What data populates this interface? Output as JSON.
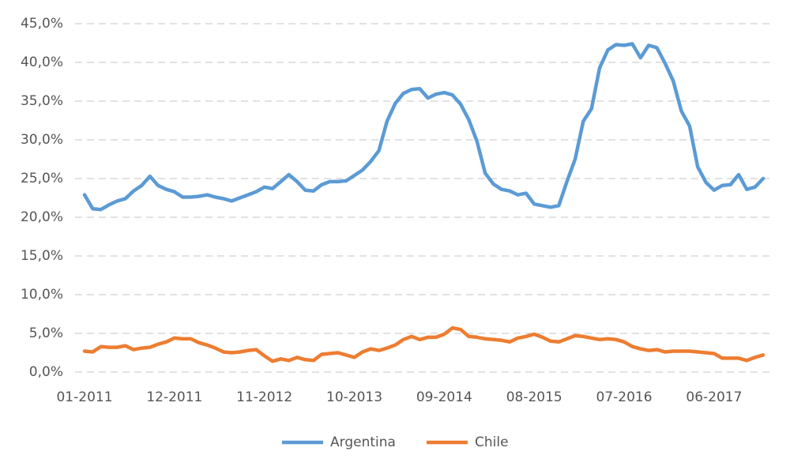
{
  "chart_data": {
    "type": "line",
    "categories": [
      "01-2011",
      null,
      null,
      null,
      null,
      null,
      null,
      null,
      null,
      null,
      null,
      "12-2011",
      null,
      null,
      null,
      null,
      null,
      null,
      null,
      null,
      null,
      null,
      "11-2012",
      null,
      null,
      null,
      null,
      null,
      null,
      null,
      null,
      null,
      null,
      "10-2013",
      null,
      null,
      null,
      null,
      null,
      null,
      null,
      null,
      null,
      null,
      "09-2014",
      null,
      null,
      null,
      null,
      null,
      null,
      null,
      null,
      null,
      null,
      "08-2015",
      null,
      null,
      null,
      null,
      null,
      null,
      null,
      null,
      null,
      null,
      "07-2016",
      null,
      null,
      null,
      null,
      null,
      null,
      null,
      null,
      null,
      null,
      "06-2017",
      null,
      null,
      null,
      null,
      null,
      null
    ],
    "series": [
      {
        "name": "Argentina",
        "color": "#5b9bd5",
        "values": [
          22.9,
          21.1,
          21.0,
          21.6,
          22.1,
          22.4,
          23.4,
          24.1,
          25.3,
          24.1,
          23.6,
          23.3,
          22.6,
          22.6,
          22.7,
          22.9,
          22.6,
          22.4,
          22.1,
          22.5,
          22.9,
          23.3,
          23.9,
          23.7,
          24.6,
          25.5,
          24.6,
          23.5,
          23.4,
          24.2,
          24.6,
          24.6,
          24.7,
          25.4,
          26.1,
          27.2,
          28.6,
          32.4,
          34.7,
          36.0,
          36.5,
          36.6,
          35.4,
          35.9,
          36.1,
          35.8,
          34.6,
          32.6,
          29.8,
          25.7,
          24.3,
          23.6,
          23.4,
          22.9,
          23.1,
          21.7,
          21.5,
          21.3,
          21.5,
          24.6,
          27.5,
          32.4,
          34.0,
          39.3,
          41.6,
          42.3,
          42.2,
          42.4,
          40.6,
          42.2,
          41.9,
          39.9,
          37.6,
          33.7,
          31.8,
          26.5,
          24.5,
          23.5,
          24.1,
          24.2,
          25.5,
          23.6,
          23.9,
          25.0
        ]
      },
      {
        "name": "Chile",
        "color": "#ed7d31",
        "values": [
          2.7,
          2.6,
          3.3,
          3.2,
          3.2,
          3.4,
          2.9,
          3.1,
          3.2,
          3.6,
          3.9,
          4.4,
          4.3,
          4.3,
          3.8,
          3.5,
          3.1,
          2.6,
          2.5,
          2.6,
          2.8,
          2.9,
          2.1,
          1.4,
          1.7,
          1.5,
          1.9,
          1.6,
          1.5,
          2.3,
          2.4,
          2.5,
          2.2,
          1.9,
          2.6,
          3.0,
          2.8,
          3.1,
          3.5,
          4.2,
          4.6,
          4.2,
          4.5,
          4.5,
          4.9,
          5.7,
          5.5,
          4.6,
          4.5,
          4.3,
          4.2,
          4.1,
          3.9,
          4.4,
          4.6,
          4.9,
          4.5,
          4.0,
          3.9,
          4.3,
          4.7,
          4.6,
          4.4,
          4.2,
          4.3,
          4.2,
          3.9,
          3.3,
          3.0,
          2.8,
          2.9,
          2.6,
          2.7,
          2.7,
          2.7,
          2.6,
          2.5,
          2.4,
          1.8,
          1.8,
          1.8,
          1.5,
          1.9,
          2.2
        ]
      }
    ],
    "ylim": [
      0,
      45
    ],
    "yticks": [
      {
        "value": 0,
        "label": "0,0%"
      },
      {
        "value": 5,
        "label": "5,0%"
      },
      {
        "value": 10,
        "label": "10,0%"
      },
      {
        "value": 15,
        "label": "15,0%"
      },
      {
        "value": 20,
        "label": "20,0%"
      },
      {
        "value": 25,
        "label": "25,0%"
      },
      {
        "value": 30,
        "label": "30,0%"
      },
      {
        "value": 35,
        "label": "35,0%"
      },
      {
        "value": 40,
        "label": "40,0%"
      },
      {
        "value": 45,
        "label": "45,0%"
      }
    ],
    "grid": true,
    "legend": "bottom"
  }
}
